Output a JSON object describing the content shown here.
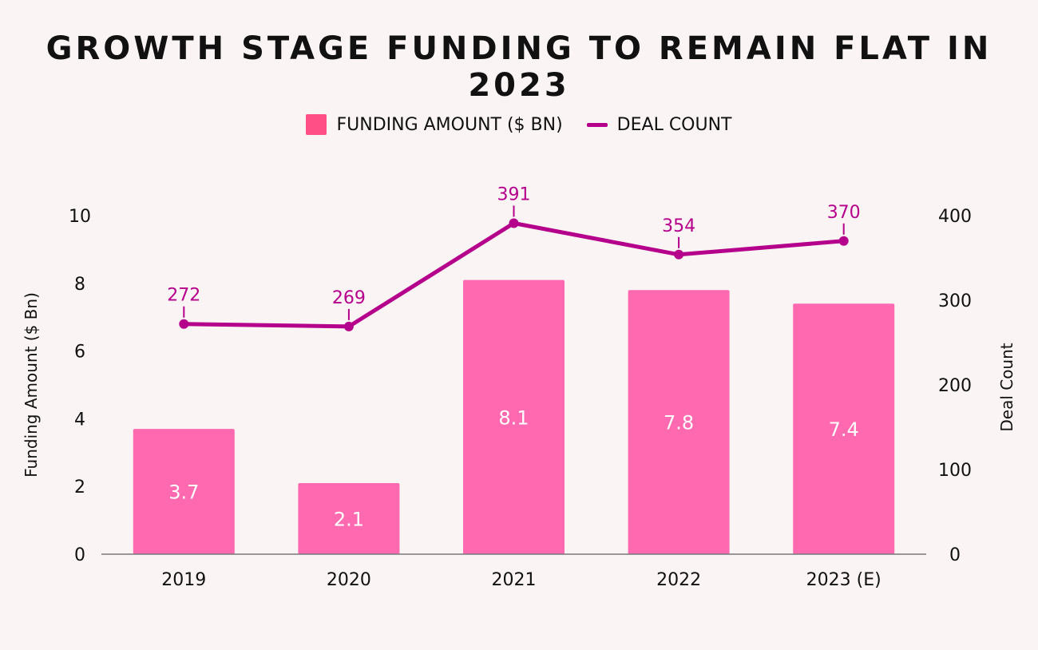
{
  "chart_data": {
    "type": "bar",
    "title": "GROWTH STAGE FUNDING TO REMAIN FLAT IN 2023",
    "categories": [
      "2019",
      "2020",
      "2021",
      "2022",
      "2023 (E)"
    ],
    "series": [
      {
        "name": "FUNDING AMOUNT ($ BN)",
        "type": "bar",
        "axis": "left",
        "color": "#ff69b0",
        "values": [
          3.7,
          2.1,
          8.1,
          7.8,
          7.4
        ],
        "labels": [
          "3.7",
          "2.1",
          "8.1",
          "7.8",
          "7.4"
        ]
      },
      {
        "name": "DEAL COUNT",
        "type": "line",
        "axis": "right",
        "color": "#b5008c",
        "values": [
          272,
          269,
          391,
          354,
          370
        ],
        "labels": [
          "272",
          "269",
          "391",
          "354",
          "370"
        ]
      }
    ],
    "ylabel": "Funding Amount ($ Bn)",
    "y2label": "Deal Count",
    "ylim": [
      0,
      10
    ],
    "y2lim": [
      0,
      400
    ],
    "yticks": [
      "0",
      "2",
      "4",
      "6",
      "8",
      "10"
    ],
    "y2ticks": [
      "0",
      "100",
      "200",
      "300",
      "400"
    ],
    "legend_position": "top-center",
    "grid": false
  }
}
